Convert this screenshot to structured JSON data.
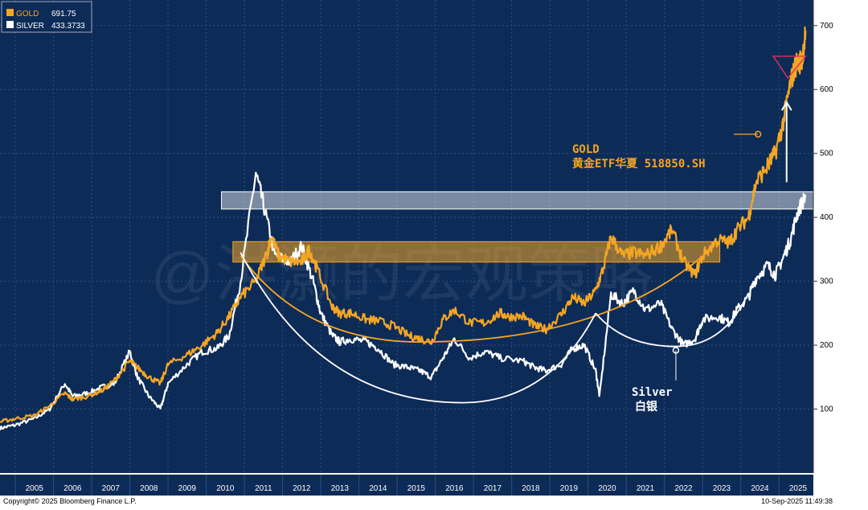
{
  "chart_data": {
    "type": "line",
    "title": "",
    "xlabel": "",
    "ylabel": "",
    "xlim": [
      2004.6,
      2025.9
    ],
    "ylim": [
      0,
      740
    ],
    "y_ticks": [
      100,
      200,
      300,
      400,
      500,
      600,
      700
    ],
    "x_tick_labels": [
      "2005",
      "2006",
      "2007",
      "2008",
      "2009",
      "2010",
      "2011",
      "2012",
      "2013",
      "2014",
      "2015",
      "2016",
      "2017",
      "2018",
      "2019",
      "2020",
      "2021",
      "2022",
      "2023",
      "2024",
      "2025"
    ],
    "legend": {
      "placement": "top-left",
      "entries": [
        {
          "name": "GOLD",
          "value": "691.75",
          "color": "#f5a623"
        },
        {
          "name": "SILVER",
          "value": "433.3733",
          "color": "#ffffff"
        }
      ]
    },
    "series": [
      {
        "name": "GOLD",
        "color": "#f5a623",
        "x": [
          2004.6,
          2005.0,
          2005.5,
          2005.9,
          2006.3,
          2006.5,
          2006.9,
          2007.3,
          2007.6,
          2008.0,
          2008.2,
          2008.5,
          2008.8,
          2009.0,
          2009.5,
          2009.9,
          2010.3,
          2010.6,
          2010.9,
          2011.3,
          2011.6,
          2011.7,
          2011.9,
          2012.2,
          2012.5,
          2012.7,
          2012.9,
          2013.3,
          2013.5,
          2013.8,
          2014.2,
          2014.5,
          2014.9,
          2015.3,
          2015.6,
          2015.9,
          2016.2,
          2016.5,
          2016.9,
          2017.3,
          2017.7,
          2017.9,
          2018.3,
          2018.6,
          2018.9,
          2019.3,
          2019.6,
          2019.9,
          2020.2,
          2020.4,
          2020.6,
          2020.9,
          2021.2,
          2021.5,
          2021.9,
          2022.2,
          2022.5,
          2022.8,
          2023.0,
          2023.4,
          2023.7,
          2023.9,
          2024.2,
          2024.4,
          2024.7,
          2024.9,
          2025.1,
          2025.3,
          2025.45,
          2025.6,
          2025.7
        ],
        "values": [
          80,
          85,
          90,
          105,
          125,
          115,
          120,
          130,
          145,
          175,
          165,
          150,
          140,
          170,
          185,
          200,
          220,
          245,
          275,
          300,
          345,
          370,
          340,
          330,
          330,
          350,
          320,
          260,
          250,
          250,
          240,
          238,
          230,
          215,
          210,
          205,
          240,
          255,
          235,
          235,
          250,
          245,
          245,
          230,
          225,
          248,
          275,
          265,
          285,
          320,
          370,
          340,
          345,
          340,
          355,
          380,
          330,
          310,
          340,
          365,
          360,
          380,
          400,
          455,
          480,
          500,
          545,
          610,
          640,
          645,
          691.75
        ]
      },
      {
        "name": "SILVER",
        "color": "#ffffff",
        "x": [
          2004.6,
          2005.0,
          2005.5,
          2005.9,
          2006.3,
          2006.5,
          2006.9,
          2007.3,
          2007.6,
          2008.0,
          2008.2,
          2008.5,
          2008.8,
          2009.0,
          2009.5,
          2009.9,
          2010.3,
          2010.6,
          2010.9,
          2011.3,
          2011.5,
          2011.8,
          2012.2,
          2012.5,
          2012.8,
          2013.0,
          2013.3,
          2013.5,
          2013.8,
          2014.2,
          2014.5,
          2014.9,
          2015.3,
          2015.6,
          2015.9,
          2016.2,
          2016.5,
          2016.9,
          2017.3,
          2017.7,
          2018.3,
          2018.6,
          2018.9,
          2019.3,
          2019.6,
          2019.9,
          2020.2,
          2020.3,
          2020.6,
          2020.9,
          2021.2,
          2021.5,
          2021.9,
          2022.2,
          2022.5,
          2022.8,
          2023.0,
          2023.4,
          2023.7,
          2023.9,
          2024.2,
          2024.4,
          2024.7,
          2024.9,
          2025.1,
          2025.3,
          2025.5,
          2025.7
        ],
        "values": [
          70,
          75,
          85,
          100,
          140,
          120,
          125,
          135,
          140,
          190,
          150,
          120,
          100,
          140,
          170,
          190,
          195,
          215,
          300,
          470,
          420,
          340,
          330,
          355,
          300,
          250,
          215,
          205,
          210,
          205,
          195,
          170,
          165,
          160,
          150,
          180,
          210,
          180,
          190,
          180,
          175,
          165,
          160,
          170,
          195,
          200,
          160,
          120,
          280,
          265,
          285,
          255,
          265,
          225,
          200,
          210,
          240,
          245,
          235,
          255,
          275,
          305,
          325,
          310,
          335,
          365,
          410,
          433.37
        ]
      }
    ],
    "annotations": {
      "gold_label": "GOLD",
      "gold_subtitle": "黄金ETF华夏 518850.SH",
      "silver_label": "Silver",
      "silver_subtitle": "白银",
      "watermark": "@洪灏的宏观策略",
      "copyright": "Copyright© 2025 Bloomberg Finance L.P.",
      "timestamp": "10-Sep-2025 11:49:38"
    },
    "overlays": {
      "white_band": {
        "from": 2010.4,
        "to": 2025.9,
        "y_low": 413,
        "y_high": 440
      },
      "gold_band": {
        "from": 2010.7,
        "to": 2023.45,
        "y_low": 330,
        "y_high": 362
      },
      "gold_cup": {
        "start": [
          2010.9,
          340
        ],
        "bottom": [
          2015.6,
          205
        ],
        "end": [
          2023.3,
          355
        ]
      },
      "silver_cup": {
        "start": [
          2010.9,
          345
        ],
        "bottom": [
          2016.7,
          110
        ],
        "end": [
          2020.2,
          250
        ]
      },
      "silver_cup2": {
        "start": [
          2020.2,
          250
        ],
        "bottom": [
          2022.3,
          198
        ],
        "end": [
          2024.1,
          270
        ]
      },
      "gold_marker": {
        "x": 2024.45,
        "y": 530
      },
      "silver_marker": {
        "x": 2022.3,
        "y": 192
      },
      "silver_pointer_low": 145,
      "arrow": {
        "x": 2025.2,
        "from": 455,
        "to": 580
      },
      "triangle": {
        "x1": 2024.85,
        "x2": 2025.7,
        "y_top": 652,
        "y_bottom": 618
      }
    }
  },
  "colors": {
    "background": "#0d2b57",
    "gold": "#f5a623",
    "silver": "#ffffff",
    "grid": "#2e4f7f",
    "axis_text": "#ffffff",
    "triangle": "#e0305a"
  }
}
